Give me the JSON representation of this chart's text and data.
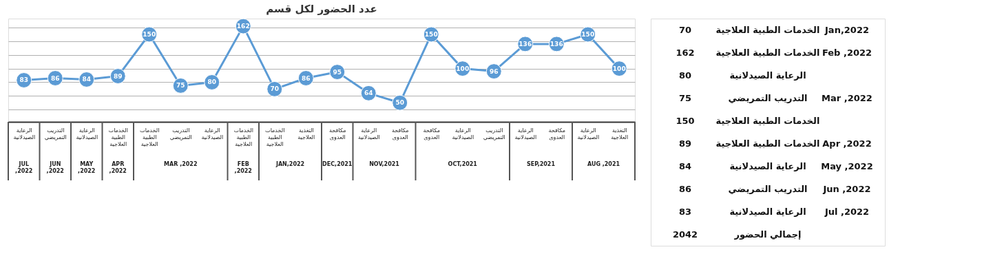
{
  "chart_data": [
    {
      "type": "line",
      "title": "عدد الحضور لكل قسم",
      "categories": [
        "الرعاية الصيدلانية",
        "التدريب التمريضي",
        "الرعاية الصيدلانية",
        "الخدمات الطبية العلاجية",
        "الخدمات الطبية العلاجية",
        "التدريب التمريضي",
        "الرعاية الصيدلانية",
        "الخدمات الطبية العلاجية",
        "الخدمات الطبية العلاجية",
        "التغذية العلاجية",
        "مكافحة العدوى",
        "الرعاية الصيدلانية",
        "مكافحة العدوى",
        "مكافحة العدوى",
        "الرعاية الصيدلانية",
        "التدريب التمريضي",
        "الرعاية الصيدلانية",
        "مكافحة العدوى",
        "الرعاية الصيدلانية",
        "التغذية العلاجية"
      ],
      "series": [
        {
          "color": "#5b9bd5",
          "values": [
            83,
            86,
            84,
            89,
            150,
            75,
            80,
            162,
            70,
            86,
            95,
            64,
            50,
            150,
            100,
            96,
            136,
            136,
            150,
            100
          ]
        }
      ],
      "annotations": [
        "JUL ,2022",
        "JUN ,2022",
        "MAY ,2022",
        "APR ,2022",
        "MAR ,2022",
        "FEB ,2022",
        "JAN,2022",
        "DEC,2021",
        "NOV,2021",
        "OCT,2021",
        "SEP,2021",
        "AUG ,2021"
      ],
      "data_labels": true,
      "marker": "circle",
      "line_style": "solid",
      "grid": true
    },
    {
      "type": "other",
      "annotations": [
        "Jan,2022",
        "الخدمات الطبية العلاجية",
        "70",
        "Feb ,2022",
        "الخدمات الطبية العلاجية",
        "162",
        "Mar ,2022",
        "الرعاية الصيدلانية",
        "80",
        "التدريب التمريضي",
        "75",
        "الخدمات الطبية العلاجية",
        "150",
        "Apr ,2022",
        "الخدمات الطبية العلاجية",
        "89",
        "May ,2022",
        "الرعاية الصيدلانية",
        "84",
        "Jun ,2022",
        "التدريب التمريضي",
        "86",
        "Jul ,2022",
        "الرعاية الصيدلانية",
        "83",
        "إجمالي الحضور",
        "2042"
      ]
    }
  ]
}
